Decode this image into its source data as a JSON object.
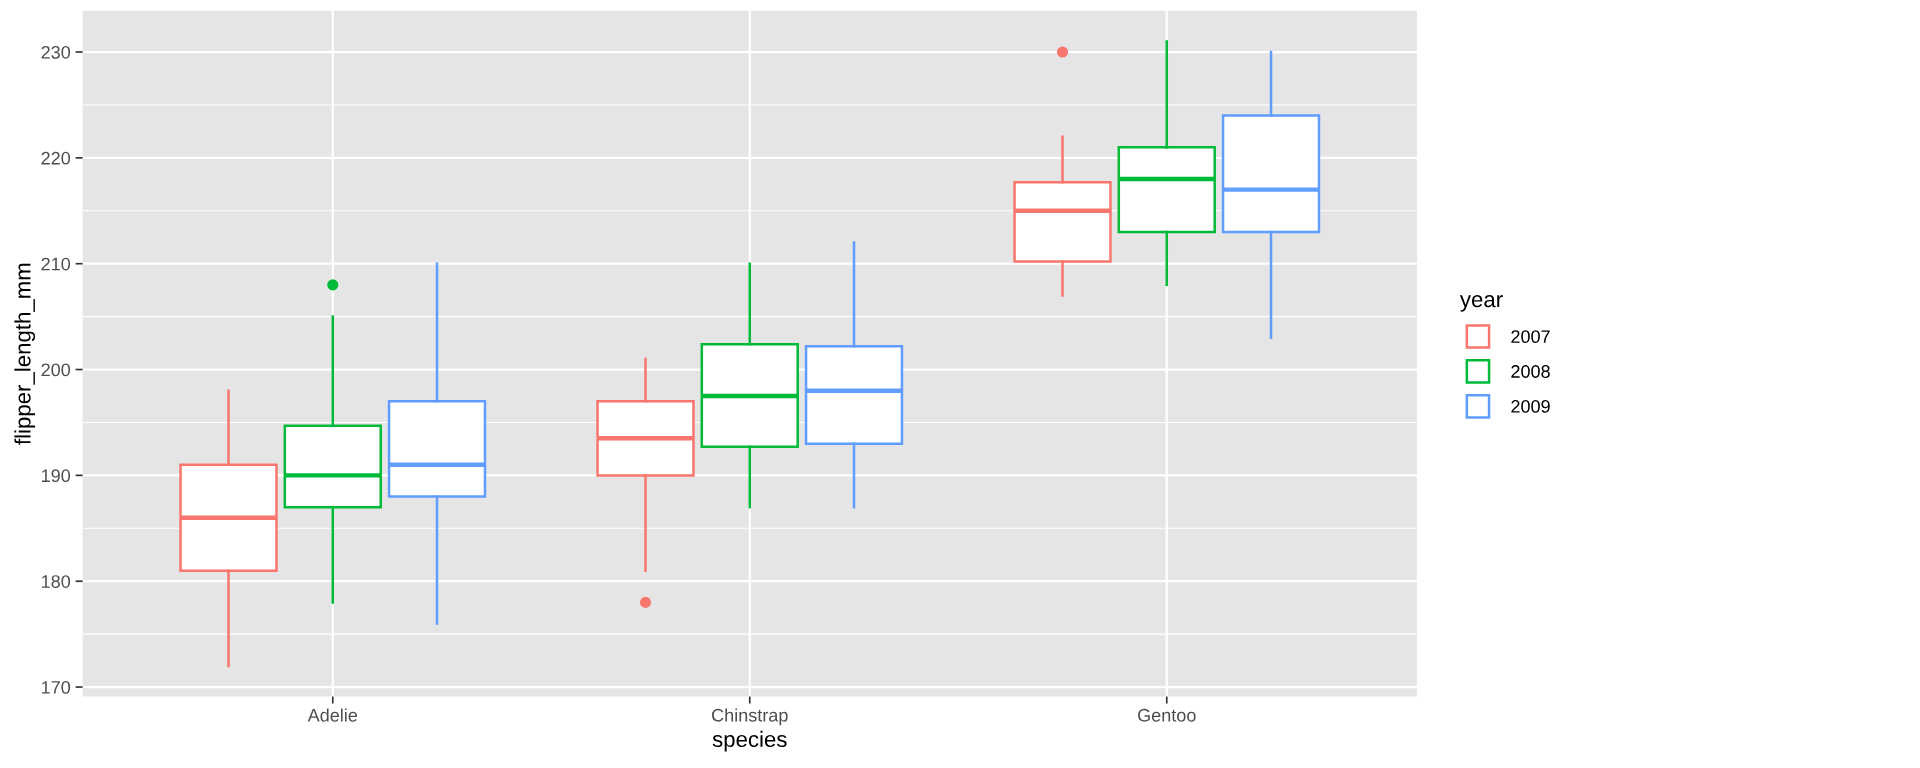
{
  "chart_data": {
    "type": "box",
    "xlabel": "species",
    "ylabel": "flipper_length_mm",
    "legend_title": "year",
    "legend": "right",
    "grid": true,
    "categories": [
      "Adelie",
      "Chinstrap",
      "Gentoo"
    ],
    "ylim": [
      169.1,
      233.9
    ],
    "yticks": [
      170,
      180,
      190,
      200,
      210,
      220,
      230
    ],
    "series": [
      {
        "name": "2007",
        "color": "#f8766d",
        "boxes": [
          {
            "low": 172,
            "q1": 181,
            "median": 186,
            "q3": 191,
            "high": 198
          },
          {
            "low": 181,
            "q1": 190,
            "median": 193.5,
            "q3": 197,
            "high": 201,
            "outliers": [
              178
            ]
          },
          {
            "low": 207,
            "q1": 210.2,
            "median": 215,
            "q3": 217.7,
            "high": 222,
            "outliers": [
              230
            ]
          }
        ]
      },
      {
        "name": "2008",
        "color": "#00ba38",
        "boxes": [
          {
            "low": 178,
            "q1": 187,
            "median": 190,
            "q3": 194.7,
            "high": 205,
            "outliers": [
              208
            ]
          },
          {
            "low": 187,
            "q1": 192.7,
            "median": 197.5,
            "q3": 202.4,
            "high": 210
          },
          {
            "low": 208,
            "q1": 213,
            "median": 218,
            "q3": 221,
            "high": 231
          }
        ]
      },
      {
        "name": "2009",
        "color": "#619cff",
        "boxes": [
          {
            "low": 176,
            "q1": 188,
            "median": 191,
            "q3": 197,
            "high": 210
          },
          {
            "low": 187,
            "q1": 193,
            "median": 198,
            "q3": 202.2,
            "high": 212
          },
          {
            "low": 203,
            "q1": 213,
            "median": 217,
            "q3": 224,
            "high": 230
          }
        ]
      }
    ]
  }
}
